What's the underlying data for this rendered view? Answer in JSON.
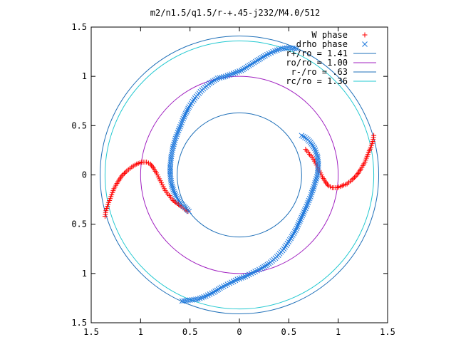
{
  "chart_data": {
    "type": "scatter",
    "title": "m2/n1.5/q1.5/r-+.45-j232/M4.0/512",
    "xlim": [
      -1.5,
      1.5
    ],
    "ylim": [
      -1.5,
      1.5
    ],
    "x_ticks": [
      -1.5,
      -1,
      -0.5,
      0,
      0.5,
      1,
      1.5
    ],
    "x_tick_labels": [
      "1.5",
      "1",
      "0.5",
      "0",
      "0.5",
      "1",
      "1.5"
    ],
    "y_ticks": [
      1.5,
      1,
      0.5,
      0,
      -0.5,
      -1,
      -1.5
    ],
    "y_tick_labels": [
      "1.5",
      "1",
      "0.5",
      "0",
      "0.5",
      "1",
      "1.5"
    ],
    "grid": false,
    "legend_position": "top-right",
    "circles": [
      {
        "name": "r+/ro = 1.41",
        "radius": 1.41,
        "color": "#1e6fb8"
      },
      {
        "name": "ro/ro = 1.00",
        "radius": 1.0,
        "color": "#a020c0"
      },
      {
        "name": "r-/ro = .63",
        "radius": 0.63,
        "color": "#1e6fb8"
      },
      {
        "name": "rc/ro = 1.36",
        "radius": 1.36,
        "color": "#20c8d0"
      }
    ],
    "series": [
      {
        "name": "W phase",
        "marker": "+",
        "color": "#ff0000",
        "points": [
          [
            -1.36,
            -0.42
          ],
          [
            -1.35,
            -0.36
          ],
          [
            -1.33,
            -0.3
          ],
          [
            -1.3,
            -0.22
          ],
          [
            -1.27,
            -0.14
          ],
          [
            -1.23,
            -0.07
          ],
          [
            -1.19,
            -0.01
          ],
          [
            -1.14,
            0.04
          ],
          [
            -1.09,
            0.08
          ],
          [
            -1.04,
            0.11
          ],
          [
            -0.99,
            0.13
          ],
          [
            -0.94,
            0.13
          ],
          [
            -0.9,
            0.11
          ],
          [
            -0.87,
            0.07
          ],
          [
            -0.84,
            0.02
          ],
          [
            -0.81,
            -0.04
          ],
          [
            -0.78,
            -0.1
          ],
          [
            -0.75,
            -0.16
          ],
          [
            -0.71,
            -0.21
          ],
          [
            -0.67,
            -0.26
          ],
          [
            -0.63,
            -0.29
          ],
          [
            -0.59,
            -0.32
          ],
          [
            -0.55,
            -0.35
          ],
          [
            -0.52,
            -0.37
          ],
          [
            1.36,
            0.4
          ],
          [
            1.35,
            0.34
          ],
          [
            1.33,
            0.28
          ],
          [
            1.3,
            0.21
          ],
          [
            1.27,
            0.13
          ],
          [
            1.23,
            0.06
          ],
          [
            1.19,
            0.0
          ],
          [
            1.14,
            -0.05
          ],
          [
            1.09,
            -0.09
          ],
          [
            1.04,
            -0.11
          ],
          [
            0.99,
            -0.13
          ],
          [
            0.94,
            -0.13
          ],
          [
            0.9,
            -0.11
          ],
          [
            0.87,
            -0.07
          ],
          [
            0.84,
            -0.02
          ],
          [
            0.81,
            0.04
          ],
          [
            0.78,
            0.1
          ],
          [
            0.75,
            0.16
          ],
          [
            0.71,
            0.21
          ],
          [
            0.67,
            0.26
          ]
        ]
      },
      {
        "name": "drho phase",
        "marker": "x",
        "color": "#1e78dc",
        "points": [
          [
            0.58,
            1.28
          ],
          [
            0.5,
            1.29
          ],
          [
            0.42,
            1.28
          ],
          [
            0.34,
            1.25
          ],
          [
            0.26,
            1.21
          ],
          [
            0.18,
            1.16
          ],
          [
            0.1,
            1.11
          ],
          [
            0.02,
            1.06
          ],
          [
            -0.06,
            1.03
          ],
          [
            -0.14,
            1.0
          ],
          [
            -0.22,
            0.98
          ],
          [
            -0.3,
            0.93
          ],
          [
            -0.38,
            0.86
          ],
          [
            -0.45,
            0.78
          ],
          [
            -0.51,
            0.69
          ],
          [
            -0.56,
            0.59
          ],
          [
            -0.6,
            0.49
          ],
          [
            -0.64,
            0.39
          ],
          [
            -0.67,
            0.29
          ],
          [
            -0.69,
            0.19
          ],
          [
            -0.7,
            0.09
          ],
          [
            -0.7,
            0.0
          ],
          [
            -0.69,
            -0.08
          ],
          [
            -0.67,
            -0.15
          ],
          [
            -0.64,
            -0.22
          ],
          [
            -0.6,
            -0.28
          ],
          [
            -0.55,
            -0.33
          ],
          [
            -0.51,
            -0.37
          ],
          [
            -0.58,
            -1.28
          ],
          [
            -0.5,
            -1.27
          ],
          [
            -0.42,
            -1.26
          ],
          [
            -0.34,
            -1.23
          ],
          [
            -0.26,
            -1.19
          ],
          [
            -0.18,
            -1.14
          ],
          [
            -0.1,
            -1.1
          ],
          [
            -0.02,
            -1.06
          ],
          [
            0.06,
            -1.03
          ],
          [
            0.14,
            -0.99
          ],
          [
            0.22,
            -0.95
          ],
          [
            0.3,
            -0.9
          ],
          [
            0.38,
            -0.83
          ],
          [
            0.45,
            -0.75
          ],
          [
            0.51,
            -0.66
          ],
          [
            0.57,
            -0.56
          ],
          [
            0.62,
            -0.45
          ],
          [
            0.67,
            -0.34
          ],
          [
            0.72,
            -0.22
          ],
          [
            0.76,
            -0.1
          ],
          [
            0.79,
            0.0
          ],
          [
            0.8,
            0.1
          ],
          [
            0.79,
            0.19
          ],
          [
            0.76,
            0.27
          ],
          [
            0.72,
            0.33
          ],
          [
            0.68,
            0.37
          ],
          [
            0.63,
            0.4
          ]
        ]
      }
    ]
  }
}
